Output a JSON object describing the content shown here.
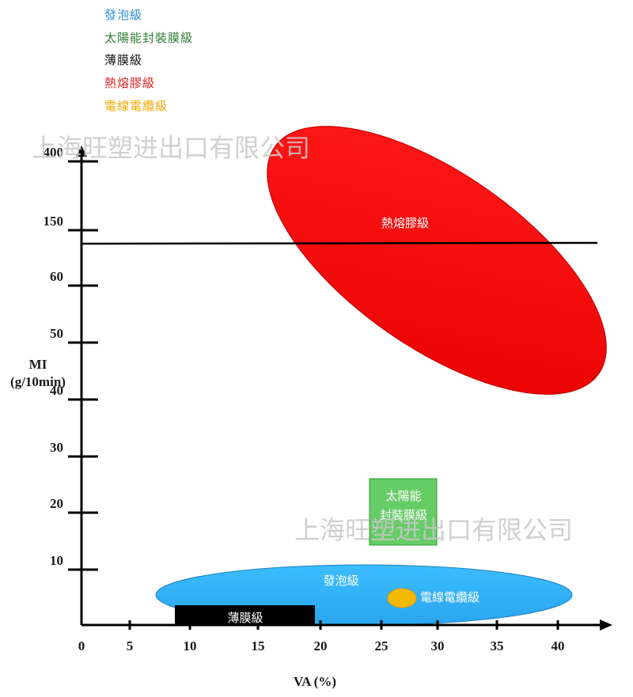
{
  "legend": [
    {
      "label": "發泡級",
      "color": "#2f8fd8"
    },
    {
      "label": "太陽能封裝膜級",
      "color": "#2e7d32"
    },
    {
      "label": "薄膜級",
      "color": "#111111"
    },
    {
      "label": "熱熔膠級",
      "color": "#e02020"
    },
    {
      "label": "電線電纜級",
      "color": "#f5a800"
    }
  ],
  "watermarks": [
    "上海旺塑进出口有限公司",
    "上海旺塑进出口有限公司"
  ],
  "chart_data": {
    "type": "region",
    "xlabel": "VA (%)",
    "ylabel": "MI\n(g/10min)",
    "x_ticks": [
      "0",
      "5",
      "10",
      "15",
      "20",
      "25",
      "30",
      "35",
      "40"
    ],
    "y_ticks": [
      "10",
      "20",
      "30",
      "40",
      "50",
      "60",
      "150",
      "400"
    ],
    "reference_line": {
      "at": "between 60 and 150",
      "color": "#000000"
    },
    "regions": [
      {
        "name": "熱熔膠級",
        "shape": "ellipse",
        "color": "#ff0000",
        "va_range": [
          15,
          44
        ],
        "mi_range": [
          "above 40",
          "400"
        ]
      },
      {
        "name": "太陽能封裝膜級",
        "label_lines": [
          "太陽能",
          "封裝膜級"
        ],
        "shape": "rectangle",
        "color": "#66cc66",
        "va_range": [
          24.5,
          30
        ],
        "mi_range": [
          14,
          25
        ]
      },
      {
        "name": "發泡級",
        "shape": "ellipse",
        "color": "#33b5f5",
        "va_range": [
          6,
          41
        ],
        "mi_range": [
          0,
          11
        ]
      },
      {
        "name": "電線電纜級",
        "shape": "ellipse",
        "color": "#f5b800",
        "va_range": [
          26,
          28
        ],
        "mi_range": [
          4,
          7
        ]
      },
      {
        "name": "薄膜級",
        "shape": "rectangle",
        "color": "#000000",
        "va_range": [
          8,
          20
        ],
        "mi_range": [
          0,
          4
        ]
      }
    ]
  }
}
